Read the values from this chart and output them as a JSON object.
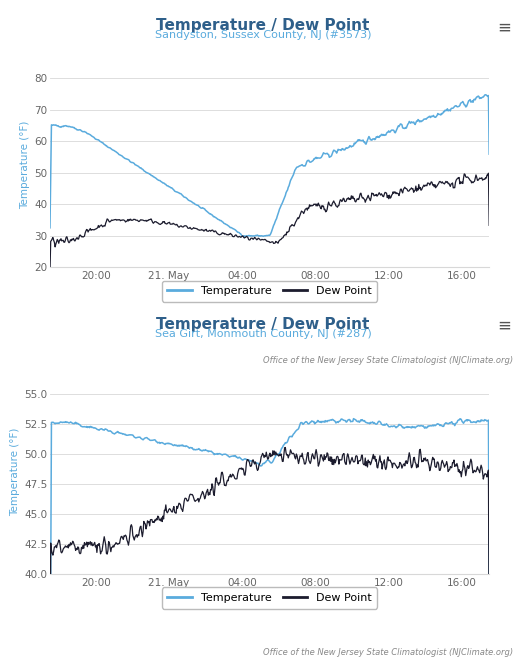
{
  "chart1": {
    "title": "Temperature / Dew Point",
    "subtitle": "Sandyston, Sussex County, NJ (#3573)",
    "ylabel": "Temperature (°F)",
    "ylim": [
      20,
      85
    ],
    "yticks": [
      20,
      30,
      40,
      50,
      60,
      70,
      80
    ],
    "title_color": "#2e5f8a",
    "subtitle_color": "#5aabdd",
    "ylabel_color": "#5aabdd"
  },
  "chart2": {
    "title": "Temperature / Dew Point",
    "subtitle": "Sea Girt, Monmouth County, NJ (#287)",
    "ylabel": "Temperature (°F)",
    "ylim": [
      40,
      57
    ],
    "yticks": [
      40,
      42.5,
      45,
      47.5,
      50,
      52.5,
      55
    ],
    "title_color": "#2e5f8a",
    "subtitle_color": "#5aabdd",
    "ylabel_color": "#5aabdd"
  },
  "x_tick_labels": [
    "20:00",
    "21. May",
    "04:00",
    "08:00",
    "12:00",
    "16:00"
  ],
  "temp_color": "#5aabdd",
  "dewpoint_color": "#1c1c2e",
  "bg_color": "#ffffff",
  "grid_color": "#d8d8d8",
  "footer": "Office of the New Jersey State Climatologist (NJClimate.org)",
  "title_fontsize": 11,
  "subtitle_fontsize": 8,
  "tick_fontsize": 7.5,
  "ylabel_fontsize": 7.5,
  "legend_fontsize": 8,
  "footer_fontsize": 6
}
